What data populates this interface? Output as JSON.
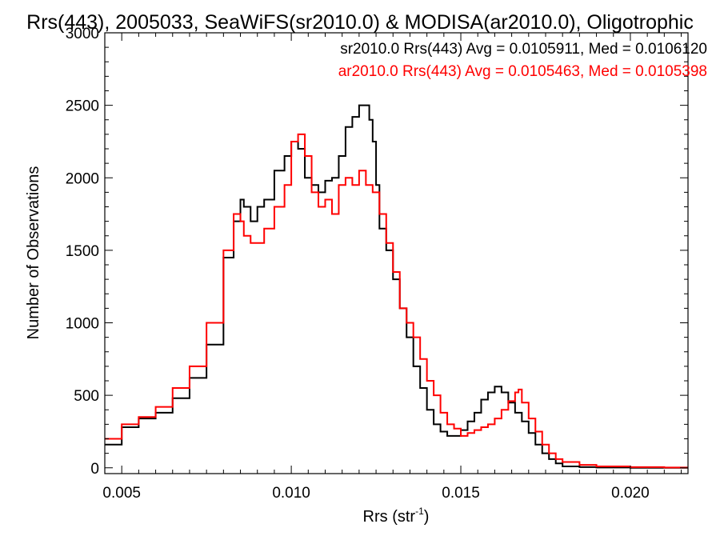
{
  "chart_data": {
    "type": "line",
    "title": "Rrs(443), 2005033, SeaWiFS(sr2010.0) & MODISA(ar2010.0), Oligotrophic",
    "xlabel": "Rrs (str",
    "xlabel_sup": "-1",
    "xlabel_end": ")",
    "ylabel": "Number of Observations",
    "xlim": [
      0.0045,
      0.0217
    ],
    "ylim": [
      -40,
      3000
    ],
    "x_ticks": [
      0.005,
      0.01,
      0.015,
      0.02
    ],
    "x_tick_labels": [
      "0.005",
      "0.010",
      "0.015",
      "0.020"
    ],
    "y_ticks": [
      0,
      500,
      1000,
      1500,
      2000,
      2500,
      3000
    ],
    "y_tick_labels": [
      "0",
      "500",
      "1000",
      "1500",
      "2000",
      "2500",
      "3000"
    ],
    "grid": false,
    "legend_placement": "top-right",
    "series": [
      {
        "name": "sr2010.0",
        "label": "sr2010.0 Rrs(443) Avg = 0.0105911, Med = 0.0106120",
        "color": "#000000",
        "x": [
          0.0045,
          0.005,
          0.0055,
          0.006,
          0.0065,
          0.007,
          0.0075,
          0.008,
          0.0083,
          0.0085,
          0.0086,
          0.0088,
          0.009,
          0.0092,
          0.0095,
          0.0098,
          0.01,
          0.0102,
          0.0104,
          0.0106,
          0.0108,
          0.011,
          0.0112,
          0.0114,
          0.0116,
          0.0118,
          0.012,
          0.0122,
          0.0123,
          0.0124,
          0.0125,
          0.0126,
          0.0128,
          0.013,
          0.0132,
          0.0134,
          0.0136,
          0.0138,
          0.014,
          0.0142,
          0.0144,
          0.0146,
          0.0148,
          0.015,
          0.0152,
          0.0154,
          0.0156,
          0.0158,
          0.016,
          0.0162,
          0.0164,
          0.0166,
          0.0168,
          0.017,
          0.0172,
          0.0174,
          0.0176,
          0.0178,
          0.018,
          0.0185,
          0.019,
          0.02,
          0.021,
          0.0217
        ],
        "y": [
          160,
          280,
          340,
          380,
          480,
          620,
          850,
          1450,
          1700,
          1850,
          1800,
          1700,
          1800,
          1850,
          2050,
          2150,
          2250,
          2200,
          2000,
          1950,
          1900,
          1980,
          2000,
          2150,
          2350,
          2420,
          2500,
          2500,
          2400,
          2250,
          1950,
          1650,
          1500,
          1300,
          1100,
          900,
          700,
          550,
          400,
          300,
          250,
          220,
          220,
          260,
          320,
          380,
          470,
          520,
          560,
          520,
          450,
          380,
          320,
          240,
          160,
          100,
          60,
          30,
          10,
          5,
          2,
          0,
          0,
          0
        ]
      },
      {
        "name": "ar2010.0",
        "label": "ar2010.0 Rrs(443) Avg = 0.0105463, Med = 0.0105398",
        "color": "#ff0000",
        "x": [
          0.0045,
          0.005,
          0.0055,
          0.006,
          0.0065,
          0.007,
          0.0075,
          0.008,
          0.0083,
          0.0085,
          0.0086,
          0.0088,
          0.009,
          0.0092,
          0.0095,
          0.0098,
          0.01,
          0.0102,
          0.0104,
          0.0106,
          0.0108,
          0.011,
          0.0112,
          0.0114,
          0.0116,
          0.0118,
          0.012,
          0.0122,
          0.0124,
          0.0126,
          0.0128,
          0.013,
          0.0132,
          0.0134,
          0.0136,
          0.0138,
          0.014,
          0.0142,
          0.0144,
          0.0146,
          0.0148,
          0.015,
          0.0152,
          0.0154,
          0.0156,
          0.0158,
          0.016,
          0.0162,
          0.0164,
          0.0166,
          0.0167,
          0.0168,
          0.017,
          0.0172,
          0.0174,
          0.0176,
          0.0178,
          0.018,
          0.0185,
          0.019,
          0.02,
          0.021,
          0.0217
        ],
        "y": [
          200,
          300,
          350,
          420,
          550,
          700,
          1000,
          1500,
          1750,
          1700,
          1600,
          1550,
          1550,
          1650,
          1800,
          1950,
          2250,
          2300,
          2150,
          1900,
          1800,
          1850,
          1750,
          1950,
          2000,
          1950,
          2050,
          1950,
          1900,
          1750,
          1550,
          1350,
          1100,
          1000,
          900,
          750,
          600,
          500,
          380,
          300,
          270,
          220,
          240,
          260,
          280,
          300,
          340,
          400,
          460,
          520,
          540,
          450,
          340,
          250,
          160,
          100,
          60,
          40,
          20,
          10,
          5,
          2,
          0
        ]
      }
    ]
  }
}
